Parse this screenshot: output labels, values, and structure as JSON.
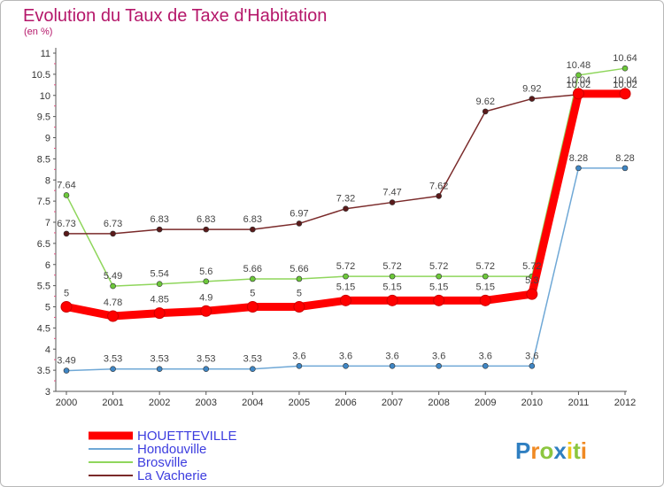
{
  "chart_data": {
    "type": "line",
    "title": "Evolution du Taux de Taxe d'Habitation",
    "unit": "(en %)",
    "x": [
      "2000",
      "2001",
      "2002",
      "2003",
      "2004",
      "2005",
      "2006",
      "2007",
      "2008",
      "2009",
      "2010",
      "2011",
      "2012"
    ],
    "y_ticks": [
      "3",
      "3.5",
      "4",
      "4.5",
      "5",
      "5.5",
      "6",
      "6.5",
      "7",
      "7.5",
      "8",
      "8.5",
      "9",
      "9.5",
      "10",
      "10.5",
      "11"
    ],
    "ylim": [
      3,
      11
    ],
    "grid": false,
    "legend_position": "bottom-left",
    "series": [
      {
        "name": "HOUETTEVILLE",
        "color": "#ff0000",
        "point_color": "#ff0000",
        "bold": true,
        "values": [
          5,
          4.78,
          4.85,
          4.9,
          5,
          5,
          5.15,
          5.15,
          5.15,
          5.15,
          5.3,
          10.04,
          10.04
        ],
        "labels": [
          "5",
          "4.78",
          "4.85",
          "4.9",
          "5",
          "5",
          "5.15",
          "5.15",
          "5.15",
          "5.15",
          "5.3",
          "10.04",
          "10.04"
        ]
      },
      {
        "name": "Hondouville",
        "color": "#6fa8d6",
        "point_color": "#3f86c4",
        "bold": false,
        "values": [
          3.49,
          3.53,
          3.53,
          3.53,
          3.53,
          3.6,
          3.6,
          3.6,
          3.6,
          3.6,
          3.6,
          8.28,
          8.28
        ],
        "labels": [
          "3.49",
          "3.53",
          "3.53",
          "3.53",
          "3.53",
          "3.6",
          "3.6",
          "3.6",
          "3.6",
          "3.6",
          "3.6",
          "8.28",
          "8.28"
        ]
      },
      {
        "name": "Brosville",
        "color": "#8fd65c",
        "point_color": "#6cc83a",
        "bold": false,
        "values": [
          7.64,
          5.49,
          5.54,
          5.6,
          5.66,
          5.66,
          5.72,
          5.72,
          5.72,
          5.72,
          5.72,
          10.48,
          10.64
        ],
        "labels": [
          "7.64",
          "5.49",
          "5.54",
          "5.6",
          "5.66",
          "5.66",
          "5.72",
          "5.72",
          "5.72",
          "5.72",
          "5.72",
          "10.48",
          "10.64"
        ]
      },
      {
        "name": "La Vacherie",
        "color": "#7a2a2a",
        "point_color": "#5a1a1a",
        "bold": false,
        "values": [
          6.73,
          6.73,
          6.83,
          6.83,
          6.83,
          6.97,
          7.32,
          7.47,
          7.62,
          9.62,
          9.92,
          10.02,
          10.02
        ],
        "labels": [
          "6.73",
          "6.73",
          "6.83",
          "6.83",
          "6.83",
          "6.97",
          "7.32",
          "7.47",
          "7.62",
          "9.62",
          "9.92",
          "10.02",
          "10.02"
        ]
      }
    ]
  },
  "brand": {
    "text": "Proxiti",
    "letters": [
      "P",
      "r",
      "o",
      "x",
      "i",
      "t",
      "i"
    ],
    "colors": [
      "#2f7fc1",
      "#f08a24",
      "#8cc63f",
      "#2f7fc1",
      "#f0c419",
      "#8cc63f",
      "#f08a24"
    ]
  }
}
